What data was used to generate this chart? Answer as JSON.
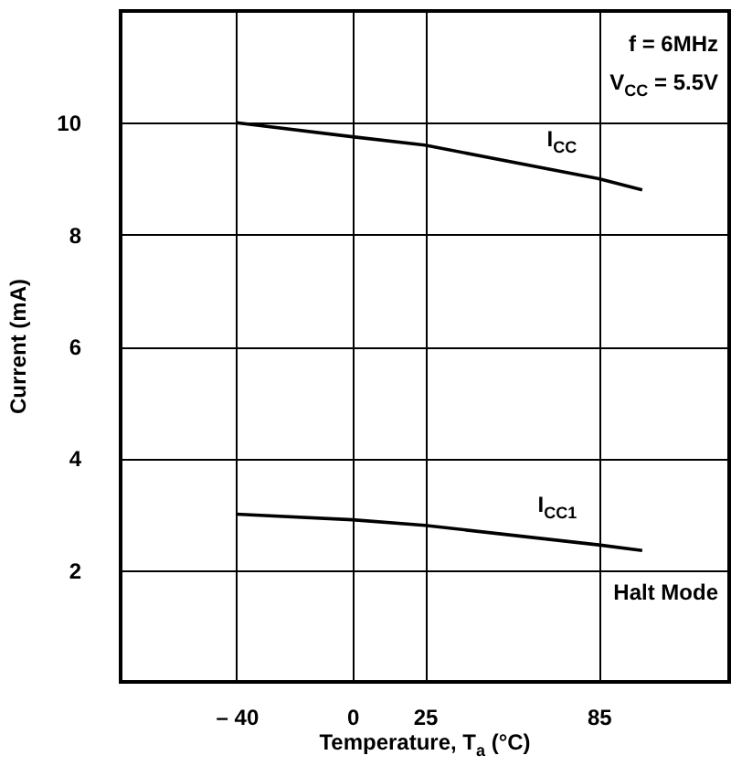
{
  "chart_data": {
    "type": "line",
    "xlabel": "Temperature, T$_{a}$ (°C)",
    "ylabel": "Current (mA)",
    "x": [
      -40,
      0,
      25,
      85,
      100
    ],
    "series": [
      {
        "name": "I$_{CC}$",
        "color": "#000000",
        "values": [
          10.0,
          9.75,
          9.6,
          9.0,
          8.8
        ]
      },
      {
        "name": "I$_{CC1}$",
        "color": "#000000",
        "values": [
          3.0,
          2.9,
          2.8,
          2.45,
          2.35
        ]
      }
    ],
    "xlim": [
      -80,
      130
    ],
    "xticks": [
      {
        "value": -40,
        "label": "– 40"
      },
      0,
      25,
      85
    ],
    "ylim": [
      0,
      12
    ],
    "yticks": [
      2,
      4,
      6,
      8,
      10
    ],
    "grid": true,
    "marker": "none",
    "line_style": "solid",
    "annotations": [
      "f = 6MHz",
      "V$_{CC}$ = 5.5V",
      "Halt Mode"
    ]
  }
}
